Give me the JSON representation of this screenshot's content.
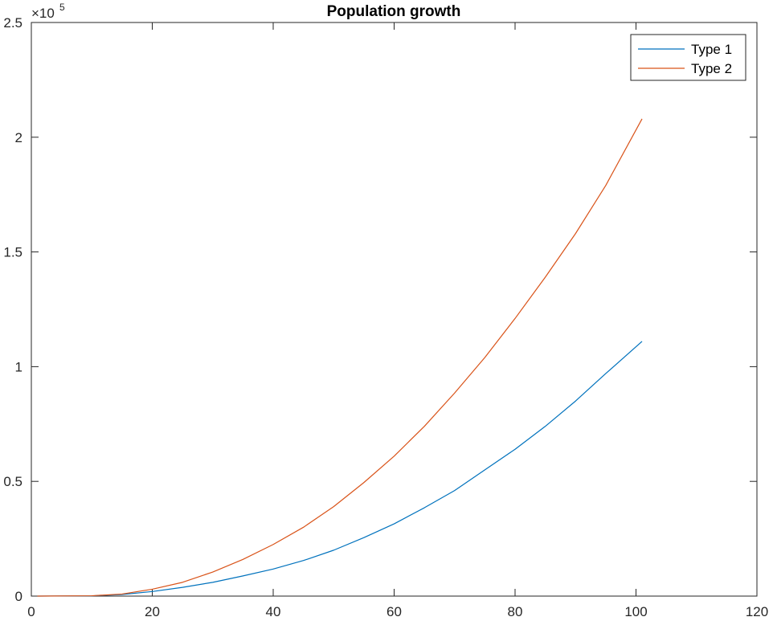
{
  "chart_data": {
    "type": "line",
    "title": "Population growth",
    "xlabel": "",
    "ylabel": "",
    "xlim": [
      0,
      120
    ],
    "ylim": [
      0,
      250000
    ],
    "x_ticks": [
      0,
      20,
      40,
      60,
      80,
      100,
      120
    ],
    "y_ticks": [
      0,
      50000,
      100000,
      150000,
      200000,
      250000
    ],
    "x_tick_labels": [
      "0",
      "20",
      "40",
      "60",
      "80",
      "100",
      "120"
    ],
    "y_tick_labels": [
      "0",
      "0.5",
      "1",
      "1.5",
      "2",
      "2.5"
    ],
    "y_multiplier": {
      "base": "×10",
      "exponent": "5"
    },
    "grid": false,
    "legend_position": "top-right",
    "series": [
      {
        "name": "Type 1",
        "color": "#0072BD",
        "x": [
          1,
          10,
          15,
          20,
          25,
          30,
          35,
          40,
          45,
          50,
          55,
          60,
          65,
          70,
          75,
          80,
          85,
          90,
          95,
          101
        ],
        "y": [
          0,
          100,
          700,
          2000,
          3800,
          6000,
          8800,
          11800,
          15500,
          20000,
          25500,
          31500,
          38500,
          46000,
          55000,
          64000,
          74000,
          85000,
          97000,
          111000
        ]
      },
      {
        "name": "Type 2",
        "color": "#D95319",
        "x": [
          1,
          10,
          15,
          20,
          25,
          30,
          35,
          40,
          45,
          50,
          55,
          60,
          65,
          70,
          75,
          80,
          85,
          90,
          95,
          101
        ],
        "y": [
          0,
          150,
          900,
          3000,
          6000,
          10500,
          16000,
          22500,
          30000,
          39000,
          49500,
          61000,
          74000,
          88500,
          104000,
          121000,
          139000,
          158000,
          179000,
          208000
        ]
      }
    ]
  }
}
